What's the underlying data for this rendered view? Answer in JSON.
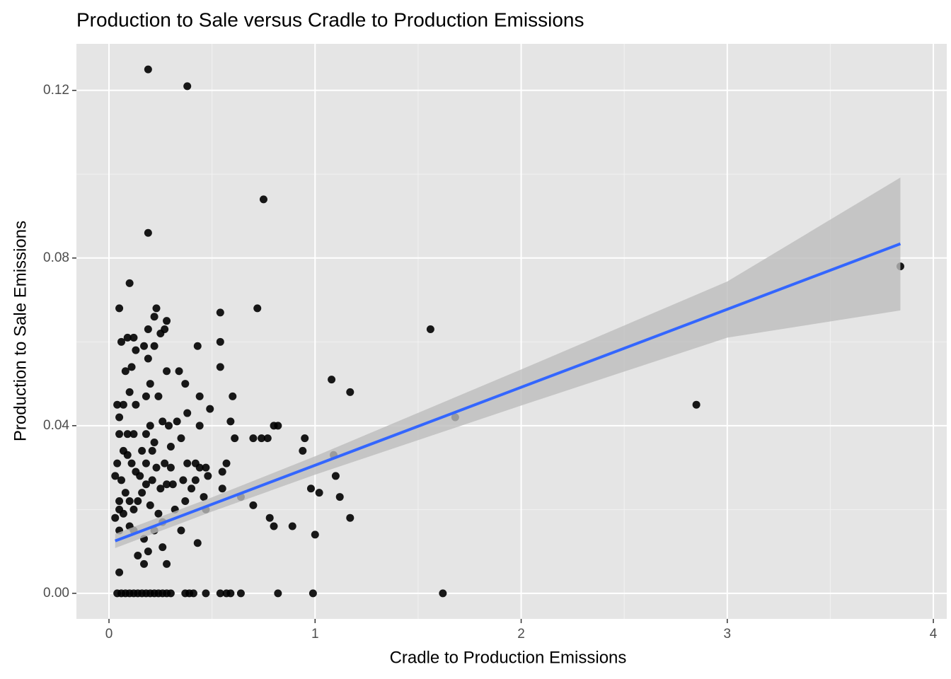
{
  "chart_data": {
    "type": "scatter",
    "title": "Production to Sale versus Cradle to Production Emissions",
    "x_label": "Cradle to Production Emissions",
    "y_label": "Production to Sale Emissions",
    "point_color": "#000000",
    "xlim": [
      -0.158,
      4.065
    ],
    "ylim": [
      -0.0061,
      0.1311
    ],
    "xticks": [
      0,
      1,
      2,
      3,
      4
    ],
    "yticks": [
      {
        "value": 0,
        "label": "0.00"
      },
      {
        "value": 0.04,
        "label": "0.04"
      },
      {
        "value": 0.08,
        "label": "0.08"
      },
      {
        "value": 0.12,
        "label": "0.12"
      }
    ],
    "grid": true,
    "x": [
      0.19,
      0.38,
      0.75,
      0.19,
      0.1,
      0.72,
      0.54,
      1.56,
      3.84,
      2.85,
      1.68,
      1.08,
      1.17,
      1.09,
      1.1,
      1.12,
      1.17,
      0.98,
      1.02,
      0.95,
      0.94,
      0.89,
      1.0,
      0.99,
      1.62,
      0.82,
      0.8,
      0.82,
      0.77,
      0.74,
      0.7,
      0.78,
      0.8,
      0.7,
      0.64,
      0.6,
      0.59,
      0.61,
      0.57,
      0.55,
      0.55,
      0.54,
      0.54,
      0.49,
      0.47,
      0.48,
      0.47,
      0.46,
      0.44,
      0.43,
      0.44,
      0.42,
      0.44,
      0.42,
      0.43,
      0.4,
      0.37,
      0.34,
      0.38,
      0.35,
      0.33,
      0.38,
      0.36,
      0.37,
      0.35,
      0.32,
      0.3,
      0.3,
      0.28,
      0.28,
      0.27,
      0.25,
      0.23,
      0.22,
      0.22,
      0.19,
      0.17,
      0.19,
      0.2,
      0.18,
      0.24,
      0.2,
      0.18,
      0.22,
      0.26,
      0.29,
      0.27,
      0.23,
      0.21,
      0.18,
      0.16,
      0.2,
      0.24,
      0.26,
      0.22,
      0.17,
      0.19,
      0.17,
      0.14,
      0.26,
      0.28,
      0.12,
      0.13,
      0.11,
      0.08,
      0.06,
      0.05,
      0.09,
      0.13,
      0.1,
      0.07,
      0.04,
      0.05,
      0.09,
      0.12,
      0.05,
      0.07,
      0.09,
      0.11,
      0.13,
      0.04,
      0.06,
      0.03,
      0.08,
      0.1,
      0.12,
      0.14,
      0.05,
      0.05,
      0.07,
      0.03,
      0.05,
      0.1,
      0.12,
      0.05,
      0.18,
      0.21,
      0.16,
      0.15,
      0.28,
      0.31,
      0.25,
      0.04,
      0.06,
      0.08,
      0.1,
      0.12,
      0.14,
      0.16,
      0.18,
      0.2,
      0.22,
      0.24,
      0.26,
      0.28,
      0.3,
      0.37,
      0.39,
      0.41,
      0.47,
      0.54,
      0.57,
      0.59,
      0.64
    ],
    "y": [
      0.125,
      0.121,
      0.094,
      0.086,
      0.074,
      0.068,
      0.067,
      0.063,
      0.078,
      0.045,
      0.042,
      0.051,
      0.048,
      0.033,
      0.028,
      0.023,
      0.018,
      0.025,
      0.024,
      0.037,
      0.034,
      0.016,
      0.014,
      0,
      0,
      0,
      0.04,
      0.04,
      0.037,
      0.037,
      0.037,
      0.018,
      0.016,
      0.021,
      0.023,
      0.047,
      0.041,
      0.037,
      0.031,
      0.029,
      0.025,
      0.06,
      0.054,
      0.044,
      0.03,
      0.028,
      0.02,
      0.023,
      0.04,
      0.059,
      0.047,
      0.031,
      0.03,
      0.027,
      0.012,
      0.025,
      0.05,
      0.053,
      0.043,
      0.037,
      0.041,
      0.031,
      0.027,
      0.022,
      0.015,
      0.02,
      0.03,
      0.035,
      0.053,
      0.065,
      0.063,
      0.062,
      0.068,
      0.066,
      0.059,
      0.063,
      0.059,
      0.056,
      0.05,
      0.047,
      0.047,
      0.04,
      0.038,
      0.036,
      0.041,
      0.04,
      0.031,
      0.03,
      0.027,
      0.026,
      0.024,
      0.021,
      0.019,
      0.017,
      0.015,
      0.013,
      0.01,
      0.007,
      0.009,
      0.011,
      0.007,
      0.061,
      0.058,
      0.054,
      0.053,
      0.06,
      0.068,
      0.061,
      0.045,
      0.048,
      0.045,
      0.045,
      0.042,
      0.038,
      0.038,
      0.038,
      0.034,
      0.033,
      0.031,
      0.029,
      0.031,
      0.027,
      0.028,
      0.024,
      0.022,
      0.02,
      0.022,
      0.022,
      0.02,
      0.019,
      0.018,
      0.015,
      0.016,
      0.015,
      0.005,
      0.031,
      0.034,
      0.034,
      0.028,
      0.026,
      0.026,
      0.025,
      0,
      0,
      0,
      0,
      0,
      0,
      0,
      0,
      0,
      0,
      0,
      0,
      0,
      0,
      0,
      0,
      0,
      0,
      0,
      0,
      0,
      0
    ],
    "fit": {
      "color": "#3366ff",
      "x": [
        0.03,
        3.84
      ],
      "y": [
        0.0125,
        0.0834
      ]
    },
    "band": {
      "color": "#bdbdbd",
      "x": [
        0.03,
        0.5,
        1,
        2,
        3,
        3.84
      ],
      "lower": [
        0.0108,
        0.0195,
        0.0283,
        0.0448,
        0.061,
        0.0675
      ],
      "upper": [
        0.0142,
        0.0229,
        0.0327,
        0.0534,
        0.0744,
        0.0992
      ]
    }
  }
}
